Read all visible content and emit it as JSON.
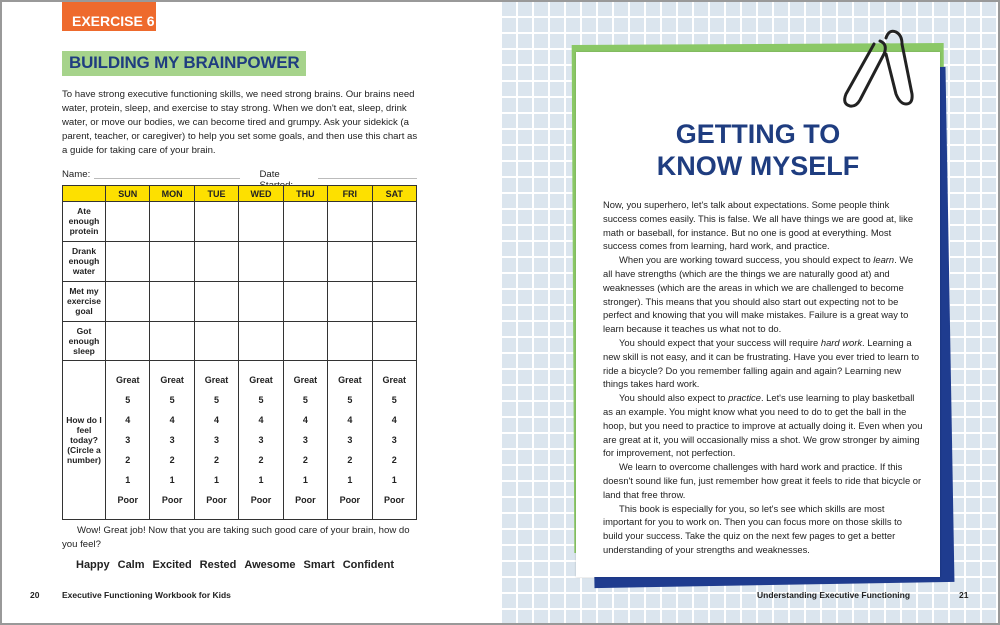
{
  "left_page": {
    "exercise_tag": "EXERCISE 6",
    "title": "BUILDING MY BRAINPOWER",
    "intro": "To have strong executive functioning skills, we need strong brains. Our brains need water, protein, sleep, and exercise to stay strong. When we don't eat, sleep, drink water, or move our bodies, we can become tired and grumpy. Ask your sidekick (a parent, teacher, or caregiver) to help you set some goals, and then use this chart as a guide for taking care of your brain.",
    "name_label": "Name:",
    "date_label": "Date Started:",
    "table": {
      "days": [
        "SUN",
        "MON",
        "TUE",
        "WED",
        "THU",
        "FRI",
        "SAT"
      ],
      "rows": [
        "Ate enough protein",
        "Drank enough water",
        "Met my exercise goal",
        "Got enough sleep"
      ],
      "feel_label": "How do I feel today? (Circle a number)",
      "scale": [
        "Great",
        "5",
        "4",
        "3",
        "2",
        "1",
        "Poor"
      ]
    },
    "wow": "Wow! Great job! Now that you are taking such good care of your brain, how do you feel?",
    "feelings": [
      "Happy",
      "Calm",
      "Excited",
      "Rested",
      "Awesome",
      "Smart",
      "Confident"
    ],
    "page_number": "20",
    "footer": "Executive Functioning Workbook for Kids"
  },
  "right_page": {
    "title_line1": "GETTING TO",
    "title_line2": "KNOW MYSELF",
    "paragraphs": [
      "Now, you superhero, let's talk about expectations. Some people think success comes easily. This is false. We all have things we are good at, like math or baseball, for instance. But no one is good at everything. Most success comes from learning, hard work, and practice.",
      "When you are working toward success, you should expect to <i>learn</i>. We all have strengths (which are the things we are naturally good at) and weaknesses (which are the areas in which we are challenged to become stronger). This means that you should also start out expecting not to be perfect and knowing that you will make mistakes. Failure is a great way to learn because it teaches us what not to do.",
      "You should expect that your success will require <i>hard work</i>. Learning a new skill is not easy, and it can be frustrating. Have you ever tried to learn to ride a bicycle? Do you remember falling again and again? Learning new things takes hard work.",
      "You should also expect to <i>practice</i>. Let's use learning to play basketball as an example. You might know what you need to do to get the ball in the hoop, but you need to practice to improve at actually doing it. Even when you are great at it, you will occasionally miss a shot. We grow stronger by aiming for improvement, not perfection.",
      "We learn to overcome challenges with hard work and practice. If this doesn't sound like fun, just remember how great it feels to ride that bicycle or land that free throw.",
      "This book is especially for you, so let's see which skills are most important for you to work on. Then you can focus more on those skills to build your success. Take the quiz on the next few pages to get a better understanding of your strengths and weaknesses."
    ],
    "footer": "Understanding Executive Functioning",
    "page_number": "21"
  },
  "colors": {
    "orange": "#ee6a2d",
    "green": "#a6d38b",
    "navy": "#1f3d80",
    "yellow": "#fde000",
    "grid": "#dbe5ee"
  },
  "icons": [
    "paperclip-icon"
  ]
}
